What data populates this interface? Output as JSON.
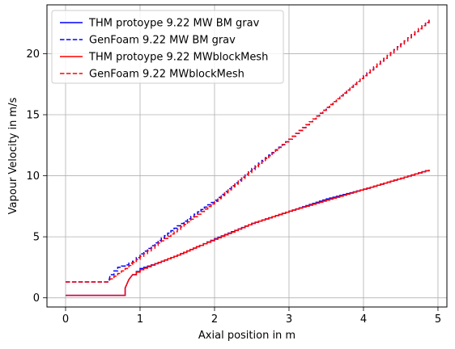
{
  "chart_data": {
    "type": "line",
    "xlabel": "Axial position in m",
    "ylabel": "Vapour Velocity in m/s",
    "xlim": [
      -0.25,
      5.12
    ],
    "ylim": [
      -0.75,
      24.0
    ],
    "xticks": [
      0,
      1,
      2,
      3,
      4,
      5
    ],
    "yticks": [
      0,
      5,
      10,
      15,
      20
    ],
    "grid": true,
    "legend_position": "upper-left",
    "series": [
      {
        "name": "THM protoype 9.22 MW BM grav",
        "color": "#0000ff",
        "dash": "solid",
        "x": [
          0.0,
          0.8,
          0.8,
          0.85,
          0.9,
          1.0,
          1.2,
          1.5,
          1.8,
          2.0,
          2.5,
          3.0,
          3.5,
          4.0,
          4.5,
          4.88
        ],
        "y": [
          0.2,
          0.2,
          0.8,
          1.5,
          1.9,
          2.4,
          2.8,
          3.5,
          4.3,
          4.85,
          6.1,
          7.1,
          8.1,
          8.9,
          9.8,
          10.5
        ]
      },
      {
        "name": "GenFoam 9.22 MW BM grav",
        "color": "#0000ff",
        "dash": "dashed",
        "x": [
          0.0,
          0.58,
          0.6,
          0.7,
          0.8,
          0.9,
          1.0,
          1.2,
          1.5,
          2.0,
          2.5,
          3.0,
          3.5,
          4.0,
          4.5,
          4.88
        ],
        "y": [
          1.3,
          1.3,
          1.9,
          2.5,
          2.7,
          3.0,
          3.6,
          4.5,
          5.9,
          8.0,
          10.6,
          13.0,
          15.6,
          18.2,
          20.8,
          22.8
        ]
      },
      {
        "name": "THM protoype 9.22 MWblockMesh",
        "color": "#ff0000",
        "dash": "solid",
        "x": [
          0.0,
          0.8,
          0.8,
          0.85,
          0.9,
          1.0,
          1.2,
          1.5,
          1.8,
          2.0,
          2.5,
          3.0,
          3.5,
          4.0,
          4.5,
          4.88
        ],
        "y": [
          0.2,
          0.2,
          0.8,
          1.5,
          1.9,
          2.3,
          2.8,
          3.5,
          4.3,
          4.8,
          6.1,
          7.1,
          8.0,
          8.9,
          9.8,
          10.5
        ]
      },
      {
        "name": "GenFoam 9.22 MWblockMesh",
        "color": "#ff0000",
        "dash": "dashed",
        "x": [
          0.0,
          0.58,
          0.6,
          0.7,
          0.8,
          0.9,
          1.0,
          1.2,
          1.5,
          2.0,
          2.5,
          3.0,
          3.5,
          4.0,
          4.5,
          4.88
        ],
        "y": [
          1.3,
          1.3,
          1.55,
          2.0,
          2.4,
          2.9,
          3.4,
          4.3,
          5.6,
          7.9,
          10.5,
          13.0,
          15.6,
          18.2,
          20.8,
          22.8
        ]
      }
    ]
  }
}
